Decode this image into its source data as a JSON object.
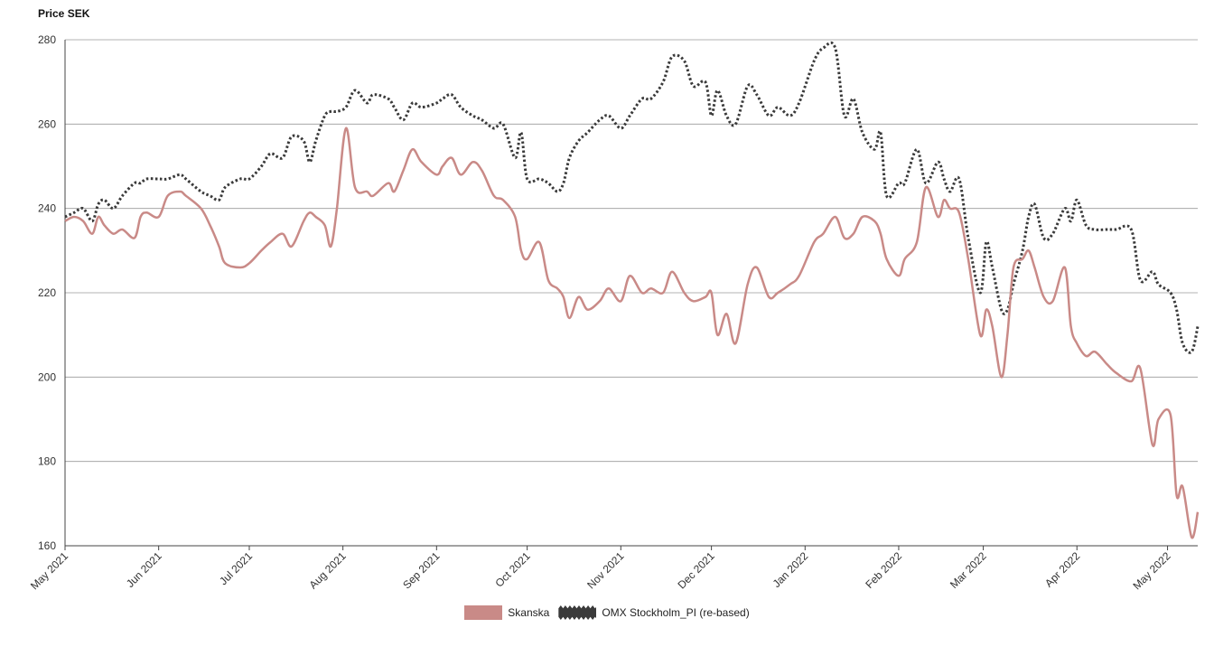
{
  "chart_data": {
    "type": "line",
    "ylabel": "Price SEK",
    "ylim": [
      160,
      280
    ],
    "yticks": [
      160,
      180,
      200,
      220,
      240,
      260,
      280
    ],
    "grid": true,
    "legend_position": "bottom-center",
    "x_ticks": [
      {
        "date": "2021-05-01",
        "label": "May 2021"
      },
      {
        "date": "2021-06-01",
        "label": "Jun 2021"
      },
      {
        "date": "2021-07-01",
        "label": "Jul 2021"
      },
      {
        "date": "2021-08-01",
        "label": "Aug 2021"
      },
      {
        "date": "2021-09-01",
        "label": "Sep 2021"
      },
      {
        "date": "2021-10-01",
        "label": "Oct 2021"
      },
      {
        "date": "2021-11-01",
        "label": "Nov 2021"
      },
      {
        "date": "2021-12-01",
        "label": "Dec 2021"
      },
      {
        "date": "2022-01-01",
        "label": "Jan 2022"
      },
      {
        "date": "2022-02-01",
        "label": "Feb 2022"
      },
      {
        "date": "2022-03-01",
        "label": "Mar 2022"
      },
      {
        "date": "2022-04-01",
        "label": "Apr 2022"
      },
      {
        "date": "2022-05-01",
        "label": "May 2022"
      }
    ],
    "series": [
      {
        "name": "Skanska",
        "color": "#c98a87",
        "style": "solid",
        "x": [
          "2021-05-01",
          "2021-05-04",
          "2021-05-07",
          "2021-05-10",
          "2021-05-12",
          "2021-05-14",
          "2021-05-17",
          "2021-05-20",
          "2021-05-24",
          "2021-05-26",
          "2021-05-28",
          "2021-06-01",
          "2021-06-04",
          "2021-06-08",
          "2021-06-10",
          "2021-06-15",
          "2021-06-18",
          "2021-06-21",
          "2021-06-23",
          "2021-06-28",
          "2021-07-01",
          "2021-07-05",
          "2021-07-08",
          "2021-07-12",
          "2021-07-15",
          "2021-07-19",
          "2021-07-21",
          "2021-07-23",
          "2021-07-26",
          "2021-07-28",
          "2021-07-30",
          "2021-08-02",
          "2021-08-05",
          "2021-08-09",
          "2021-08-11",
          "2021-08-16",
          "2021-08-18",
          "2021-08-21",
          "2021-08-24",
          "2021-08-27",
          "2021-09-01",
          "2021-09-03",
          "2021-09-06",
          "2021-09-09",
          "2021-09-13",
          "2021-09-16",
          "2021-09-20",
          "2021-09-23",
          "2021-09-27",
          "2021-09-29",
          "2021-10-01",
          "2021-10-05",
          "2021-10-08",
          "2021-10-11",
          "2021-10-13",
          "2021-10-15",
          "2021-10-18",
          "2021-10-21",
          "2021-10-25",
          "2021-10-28",
          "2021-11-01",
          "2021-11-04",
          "2021-11-08",
          "2021-11-11",
          "2021-11-15",
          "2021-11-18",
          "2021-11-22",
          "2021-11-25",
          "2021-11-29",
          "2021-12-01",
          "2021-12-03",
          "2021-12-06",
          "2021-12-09",
          "2021-12-13",
          "2021-12-16",
          "2021-12-20",
          "2021-12-23",
          "2021-12-27",
          "2021-12-30",
          "2022-01-04",
          "2022-01-07",
          "2022-01-11",
          "2022-01-14",
          "2022-01-17",
          "2022-01-20",
          "2022-01-24",
          "2022-01-26",
          "2022-01-28",
          "2022-02-01",
          "2022-02-03",
          "2022-02-07",
          "2022-02-10",
          "2022-02-14",
          "2022-02-16",
          "2022-02-18",
          "2022-02-21",
          "2022-02-24",
          "2022-02-28",
          "2022-03-02",
          "2022-03-04",
          "2022-03-07",
          "2022-03-09",
          "2022-03-11",
          "2022-03-14",
          "2022-03-16",
          "2022-03-18",
          "2022-03-21",
          "2022-03-24",
          "2022-03-28",
          "2022-03-30",
          "2022-04-01",
          "2022-04-04",
          "2022-04-07",
          "2022-04-11",
          "2022-04-14",
          "2022-04-19",
          "2022-04-22",
          "2022-04-26",
          "2022-04-28",
          "2022-05-02",
          "2022-05-04",
          "2022-05-06",
          "2022-05-09",
          "2022-05-11"
        ],
        "values": [
          237,
          238,
          237,
          234,
          238,
          236,
          234,
          235,
          233,
          238,
          239,
          238,
          243,
          244,
          243,
          240,
          236,
          231,
          227,
          226,
          227,
          230,
          232,
          234,
          231,
          237,
          239,
          238,
          236,
          231,
          240,
          259,
          245,
          244,
          243,
          246,
          244,
          249,
          254,
          251,
          248,
          250,
          252,
          248,
          251,
          249,
          243,
          242,
          238,
          230,
          228,
          232,
          223,
          221,
          219,
          214,
          219,
          216,
          218,
          221,
          218,
          224,
          220,
          221,
          220,
          225,
          220,
          218,
          219,
          220,
          210,
          215,
          208,
          222,
          226,
          219,
          220,
          222,
          224,
          232,
          234,
          238,
          233,
          234,
          238,
          237,
          234,
          228,
          224,
          228,
          232,
          245,
          238,
          242,
          240,
          239,
          228,
          210,
          216,
          212,
          200,
          210,
          226,
          228,
          230,
          226,
          219,
          218,
          226,
          212,
          208,
          205,
          206,
          203,
          201,
          199,
          202,
          184,
          190,
          191,
          172,
          174,
          162,
          168
        ],
        "x2": [],
        "values2": []
      },
      {
        "name": "OMX Stockholm_PI (re-based)",
        "color": "#3a3a3a",
        "style": "dotted",
        "x": [
          "2021-05-01",
          "2021-05-04",
          "2021-05-07",
          "2021-05-10",
          "2021-05-12",
          "2021-05-14",
          "2021-05-17",
          "2021-05-20",
          "2021-05-24",
          "2021-05-26",
          "2021-05-28",
          "2021-06-01",
          "2021-06-04",
          "2021-06-08",
          "2021-06-10",
          "2021-06-15",
          "2021-06-18",
          "2021-06-21",
          "2021-06-23",
          "2021-06-28",
          "2021-07-01",
          "2021-07-05",
          "2021-07-08",
          "2021-07-12",
          "2021-07-15",
          "2021-07-19",
          "2021-07-21",
          "2021-07-23",
          "2021-07-26",
          "2021-07-28",
          "2021-07-30",
          "2021-08-02",
          "2021-08-05",
          "2021-08-09",
          "2021-08-11",
          "2021-08-16",
          "2021-08-18",
          "2021-08-21",
          "2021-08-24",
          "2021-08-27",
          "2021-09-01",
          "2021-09-03",
          "2021-09-06",
          "2021-09-09",
          "2021-09-13",
          "2021-09-16",
          "2021-09-20",
          "2021-09-23",
          "2021-09-27",
          "2021-09-29",
          "2021-10-01",
          "2021-10-05",
          "2021-10-08",
          "2021-10-11",
          "2021-10-13",
          "2021-10-15",
          "2021-10-18",
          "2021-10-21",
          "2021-10-25",
          "2021-10-28",
          "2021-11-01",
          "2021-11-04",
          "2021-11-08",
          "2021-11-11",
          "2021-11-15",
          "2021-11-18",
          "2021-11-22",
          "2021-11-25",
          "2021-11-29",
          "2021-12-01",
          "2021-12-03",
          "2021-12-06",
          "2021-12-09",
          "2021-12-13",
          "2021-12-16",
          "2021-12-20",
          "2021-12-23",
          "2021-12-27",
          "2021-12-30",
          "2022-01-04",
          "2022-01-07",
          "2022-01-11",
          "2022-01-14",
          "2022-01-17",
          "2022-01-20",
          "2022-01-24",
          "2022-01-26",
          "2022-01-28",
          "2022-02-01",
          "2022-02-03",
          "2022-02-07",
          "2022-02-10",
          "2022-02-14",
          "2022-02-16",
          "2022-02-18",
          "2022-02-21",
          "2022-02-24",
          "2022-02-28",
          "2022-03-02",
          "2022-03-04",
          "2022-03-07",
          "2022-03-09",
          "2022-03-11",
          "2022-03-14",
          "2022-03-16",
          "2022-03-18",
          "2022-03-21",
          "2022-03-24",
          "2022-03-28",
          "2022-03-30",
          "2022-04-01",
          "2022-04-04",
          "2022-04-07",
          "2022-04-11",
          "2022-04-14",
          "2022-04-19",
          "2022-04-22",
          "2022-04-26",
          "2022-04-28",
          "2022-05-02",
          "2022-05-04",
          "2022-05-06",
          "2022-05-09",
          "2022-05-11"
        ],
        "values": [
          238,
          239,
          240,
          237,
          241,
          242,
          240,
          243,
          246,
          246,
          247,
          247,
          247,
          248,
          247,
          244,
          243,
          242,
          245,
          247,
          247,
          250,
          253,
          252,
          257,
          256,
          251,
          256,
          262,
          263,
          263,
          264,
          268,
          265,
          267,
          266,
          264,
          261,
          265,
          264,
          265,
          266,
          267,
          264,
          262,
          261,
          259,
          260,
          252,
          258,
          247,
          247,
          246,
          244,
          246,
          252,
          256,
          258,
          261,
          262,
          259,
          262,
          266,
          266,
          270,
          276,
          275,
          269,
          270,
          262,
          268,
          262,
          260,
          269,
          267,
          262,
          264,
          262,
          265,
          275,
          278,
          278,
          262,
          266,
          258,
          254,
          258,
          243,
          246,
          246,
          254,
          246,
          251,
          247,
          244,
          247,
          233,
          220,
          232,
          226,
          216,
          216,
          222,
          230,
          238,
          241,
          233,
          234,
          240,
          237,
          242,
          236,
          235,
          235,
          235,
          235,
          223,
          225,
          222,
          220,
          216,
          208,
          206,
          212
        ],
        "x2": [],
        "values2": []
      }
    ]
  }
}
